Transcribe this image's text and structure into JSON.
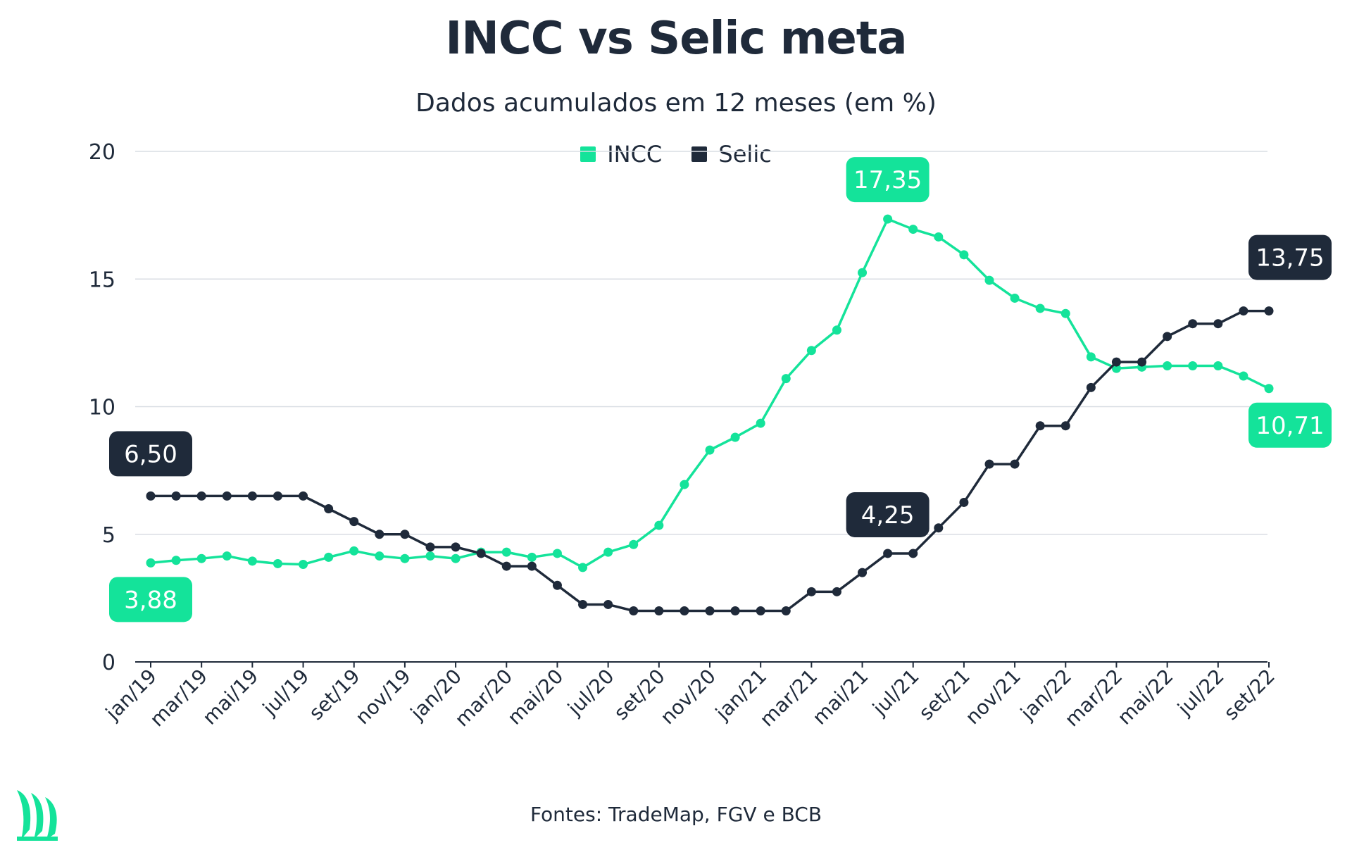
{
  "header": {
    "title": "INCC vs Selic meta",
    "subtitle": "Dados acumulados em 12 meses (em %)"
  },
  "footer": {
    "source": "Fontes: TradeMap, FGV e BCB"
  },
  "colors": {
    "incc": "#14e39a",
    "selic": "#1f2a3a",
    "accent": "#14e39a"
  },
  "logo_icon": "leaf-brand-logo-icon",
  "chart_data": {
    "type": "line",
    "x": [
      "jan/19",
      "fev/19",
      "mar/19",
      "abr/19",
      "mai/19",
      "jun/19",
      "jul/19",
      "ago/19",
      "set/19",
      "out/19",
      "nov/19",
      "dez/19",
      "jan/20",
      "fev/20",
      "mar/20",
      "abr/20",
      "mai/20",
      "jun/20",
      "jul/20",
      "ago/20",
      "set/20",
      "out/20",
      "nov/20",
      "dez/20",
      "jan/21",
      "fev/21",
      "mar/21",
      "abr/21",
      "mai/21",
      "jun/21",
      "jul/21",
      "ago/21",
      "set/21",
      "out/21",
      "nov/21",
      "dez/21",
      "jan/22",
      "fev/22",
      "mar/22",
      "abr/22",
      "mai/22",
      "jun/22",
      "jul/22",
      "ago/22",
      "set/22"
    ],
    "tick_labels": [
      "jan/19",
      "mar/19",
      "mai/19",
      "jul/19",
      "set/19",
      "nov/19",
      "jan/20",
      "mar/20",
      "mai/20",
      "jul/20",
      "set/20",
      "nov/20",
      "jan/21",
      "mar/21",
      "mai/21",
      "jul/21",
      "set/21",
      "nov/21",
      "jan/22",
      "mar/22",
      "mai/22",
      "jul/22",
      "set/22"
    ],
    "series": [
      {
        "name": "INCC",
        "values": [
          3.88,
          3.98,
          4.05,
          4.15,
          3.95,
          3.85,
          3.82,
          4.1,
          4.35,
          4.15,
          4.05,
          4.15,
          4.05,
          4.3,
          4.3,
          4.1,
          4.25,
          3.7,
          4.3,
          4.6,
          5.35,
          6.95,
          8.3,
          8.8,
          9.35,
          11.1,
          12.2,
          13.0,
          15.25,
          17.35,
          16.95,
          16.65,
          15.95,
          14.95,
          14.25,
          13.85,
          13.65,
          11.95,
          11.5,
          11.55,
          11.6,
          11.6,
          11.6,
          11.2,
          10.71
        ]
      },
      {
        "name": "Selic",
        "values": [
          6.5,
          6.5,
          6.5,
          6.5,
          6.5,
          6.5,
          6.5,
          6.0,
          5.5,
          5.0,
          5.0,
          4.5,
          4.5,
          4.25,
          3.75,
          3.75,
          3.0,
          2.25,
          2.25,
          2.0,
          2.0,
          2.0,
          2.0,
          2.0,
          2.0,
          2.0,
          2.75,
          2.75,
          3.5,
          4.25,
          4.25,
          5.25,
          6.25,
          7.75,
          7.75,
          9.25,
          9.25,
          10.75,
          11.75,
          11.75,
          12.75,
          13.25,
          13.25,
          13.75,
          13.75
        ]
      }
    ],
    "annotations": [
      {
        "series": "Selic",
        "label": "6,50"
      },
      {
        "series": "INCC",
        "label": "3,88"
      },
      {
        "series": "INCC",
        "label": "17,35"
      },
      {
        "series": "Selic",
        "label": "4,25"
      },
      {
        "series": "Selic",
        "label": "13,75"
      },
      {
        "series": "INCC",
        "label": "10,71"
      }
    ],
    "yticks": [
      "0",
      "5",
      "10",
      "15",
      "20"
    ],
    "ylim": [
      0,
      20
    ],
    "grid": true,
    "legend_position": "top-center"
  }
}
